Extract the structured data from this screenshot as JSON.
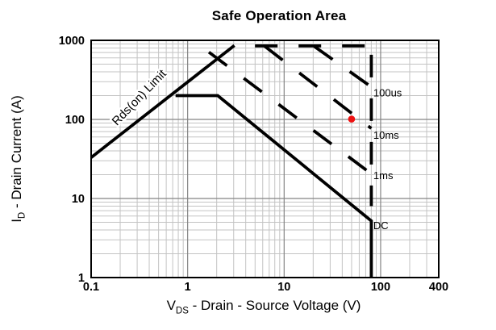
{
  "title": "Safe Operation Area",
  "axes": {
    "x": {
      "symbol": "V",
      "symbol_sub": "DS",
      "title": " - Drain - Source Voltage (V)",
      "scale": "log",
      "range": [
        0.1,
        400
      ],
      "ticks": [
        "0.1",
        "1",
        "10",
        "100",
        "400"
      ]
    },
    "y": {
      "symbol": "I",
      "symbol_sub": "D",
      "title": " - Drain Current (A)",
      "scale": "log",
      "range": [
        1,
        1000
      ],
      "ticks": [
        "1000",
        "100",
        "10",
        "1"
      ]
    }
  },
  "chart_data": {
    "type": "line",
    "title": "Safe Operation Area",
    "xlabel": "VDS - Drain - Source Voltage (V)",
    "ylabel": "ID - Drain Current (A)",
    "xscale": "log",
    "yscale": "log",
    "xlim": [
      0.1,
      400
    ],
    "ylim": [
      1,
      1000
    ],
    "grid": {
      "major": true,
      "minor": true
    },
    "series": [
      {
        "name": "rds-on-limit",
        "label": "Rds(on) Limit",
        "style": "solid",
        "dashoffset": 0,
        "points": [
          [
            0.1,
            33
          ],
          [
            3.05,
            860
          ]
        ]
      },
      {
        "name": "dc-limit",
        "label": "DC",
        "style": "solid",
        "dashoffset": 0,
        "points": [
          [
            0.75,
            200
          ],
          [
            2.05,
            200
          ],
          [
            80,
            5.2
          ],
          [
            80,
            1
          ]
        ]
      },
      {
        "name": "pulse-peak-current-limit",
        "label": "",
        "style": "dashed",
        "dashoffset": -17,
        "points": [
          [
            3.6,
            850
          ],
          [
            77,
            850
          ]
        ]
      },
      {
        "name": "breakdown-voltage-limit",
        "label": "",
        "style": "dashed",
        "dashoffset": -11,
        "points": [
          [
            80,
            850
          ],
          [
            80,
            8
          ]
        ]
      },
      {
        "name": "pulse-100us",
        "label": "100us",
        "style": "dashed",
        "dashoffset": 0,
        "points": [
          [
            20.5,
            840
          ],
          [
            80,
            258
          ]
        ]
      },
      {
        "name": "pulse-10ms",
        "label": "10ms",
        "style": "dashed",
        "dashoffset": 0,
        "points": [
          [
            6.3,
            840
          ],
          [
            80,
            77
          ]
        ]
      },
      {
        "name": "pulse-1ms",
        "label": "1ms",
        "style": "dashed",
        "dashoffset": 0,
        "points": [
          [
            1.66,
            710
          ],
          [
            80,
            20.5
          ]
        ]
      }
    ],
    "curve_labels": [
      {
        "text": "100us",
        "x": 84,
        "y": 218
      },
      {
        "text": "10ms",
        "x": 84,
        "y": 63
      },
      {
        "text": "1ms",
        "x": 84,
        "y": 19.5
      },
      {
        "text": "DC",
        "x": 84,
        "y": 4.55
      }
    ],
    "inline_label": {
      "text": "Rds(on) Limit",
      "x": 0.336,
      "y": 175,
      "rotation_deg": -46
    },
    "marker": {
      "x": 50,
      "y": 101,
      "color": "#ee1111"
    }
  },
  "colors": {
    "background": "#ffffff",
    "frame": "#000000",
    "grid_major": "#858585",
    "grid_minor": "#c3c3c3",
    "curve": "#000000",
    "marker": "#ee1111",
    "text": "#000000"
  }
}
